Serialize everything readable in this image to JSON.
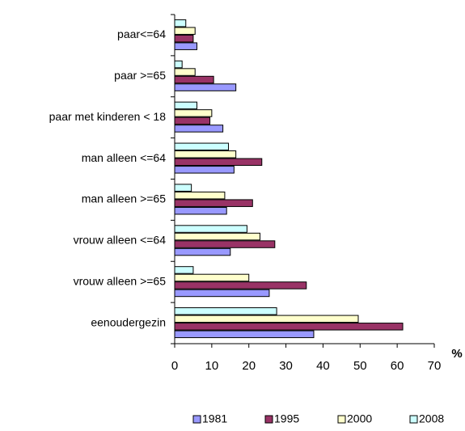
{
  "chart_data": {
    "type": "barh",
    "xlabel": "%",
    "categories": [
      "paar<=64",
      "paar >=65",
      "paar met kinderen < 18",
      "man alleen <=64",
      "man alleen >=65",
      "vrouw alleen <=64",
      "vrouw alleen >=65",
      "eenoudergezin"
    ],
    "series": [
      {
        "name": "1981",
        "color": "#9999ff",
        "values": [
          6,
          16.5,
          13,
          16,
          14,
          15,
          25.5,
          37.5
        ]
      },
      {
        "name": "1995",
        "color": "#993366",
        "values": [
          5,
          10.5,
          9.5,
          23.5,
          21,
          27,
          35.5,
          61.5
        ]
      },
      {
        "name": "2000",
        "color": "#ffffcc",
        "values": [
          5.5,
          5.5,
          10,
          16.5,
          13.5,
          23,
          20,
          49.5
        ]
      },
      {
        "name": "2008",
        "color": "#ccffff",
        "values": [
          3,
          2,
          6,
          14.5,
          4.5,
          19.5,
          5,
          27.5
        ]
      }
    ],
    "xlim": [
      0,
      70
    ],
    "xticks": [
      0,
      10,
      20,
      30,
      40,
      50,
      60,
      70
    ],
    "legend": "bottom"
  }
}
